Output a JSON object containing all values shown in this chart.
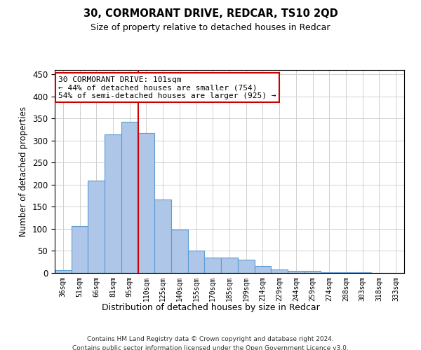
{
  "title": "30, CORMORANT DRIVE, REDCAR, TS10 2QD",
  "subtitle": "Size of property relative to detached houses in Redcar",
  "xlabel": "Distribution of detached houses by size in Redcar",
  "ylabel": "Number of detached properties",
  "categories": [
    "36sqm",
    "51sqm",
    "66sqm",
    "81sqm",
    "95sqm",
    "110sqm",
    "125sqm",
    "140sqm",
    "155sqm",
    "170sqm",
    "185sqm",
    "199sqm",
    "214sqm",
    "229sqm",
    "244sqm",
    "259sqm",
    "274sqm",
    "288sqm",
    "303sqm",
    "318sqm",
    "333sqm"
  ],
  "values": [
    7,
    107,
    210,
    314,
    343,
    318,
    166,
    99,
    50,
    35,
    35,
    30,
    16,
    8,
    5,
    5,
    2,
    1,
    1,
    0,
    0
  ],
  "bar_color": "#aec6e8",
  "bar_edge_color": "#5b9bd5",
  "property_line_x": 4.5,
  "property_line_color": "#cc0000",
  "annotation_line1": "30 CORMORANT DRIVE: 101sqm",
  "annotation_line2": "← 44% of detached houses are smaller (754)",
  "annotation_line3": "54% of semi-detached houses are larger (925) →",
  "annotation_box_color": "#ffffff",
  "annotation_box_edge": "#cc0000",
  "ylim": [
    0,
    460
  ],
  "yticks": [
    0,
    50,
    100,
    150,
    200,
    250,
    300,
    350,
    400,
    450
  ],
  "footer": "Contains HM Land Registry data © Crown copyright and database right 2024.\nContains public sector information licensed under the Open Government Licence v3.0.",
  "background_color": "#ffffff",
  "grid_color": "#d0d0d0"
}
